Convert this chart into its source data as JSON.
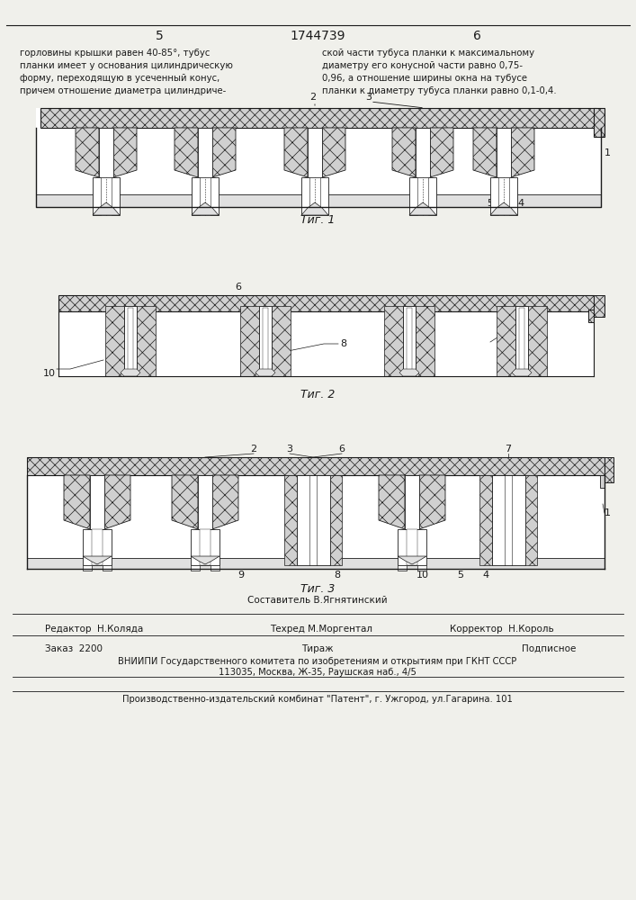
{
  "bg_color": "#f0f0eb",
  "lc": "#1a1a1a",
  "header": {
    "left_num": "5",
    "center_num": "1744739",
    "right_num": "6"
  },
  "text_left": [
    "горловины крышки равен 40-85°, тубус",
    "планки имеет у основания цилиндрическую",
    "форму, переходящую в усеченный конус,",
    "причем отношение диаметра цилиндриче-"
  ],
  "text_right": [
    "ской части тубуса планки к максимальному",
    "диаметру его конусной части равно 0,75-",
    "0,96, а отношение ширины окна на тубусе",
    "планки к диаметру тубуса планки равно 0,1-0,4."
  ],
  "fig1_label": "Τиг. 1",
  "fig2_label": "Τиг. 2",
  "fig3_label": "Τиг. 3",
  "footer": {
    "sestavitel_label": "Составитель В.Ягнятинский",
    "redaktor_label": "Редактор  Н.Коляда",
    "tehred_label": "Техред М.Моргентал",
    "korrektor_label": "Корректор  Н.Король",
    "zakaz_label": "Заказ  2200",
    "tirazh_label": "Тираж",
    "podpisnoe_label": "Подписное",
    "vniipи_line1": "ВНИИПИ Государственного комитета по изобретениям и открытиям при ГКНТ СССР",
    "vniipи_line2": "113035, Москва, Ж-35, Раушская наб., 4/5",
    "proizv_line": "Производственно-издательский комбинат \"Патент\", г. Ужгород, ул.Гагарина. 101"
  }
}
